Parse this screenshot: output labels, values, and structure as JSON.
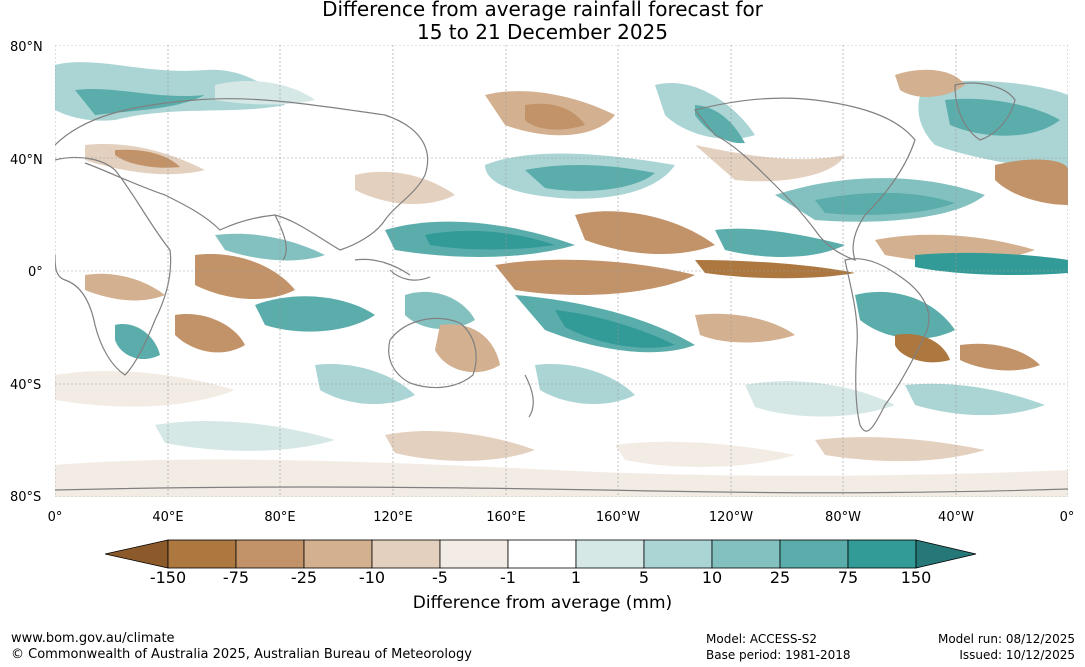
{
  "title_line1": "Difference from average rainfall forecast for",
  "title_line2": "15 to 21 December 2025",
  "lat_labels": [
    "80°N",
    "40°N",
    "0°",
    "40°S",
    "80°S"
  ],
  "lon_labels": [
    "0°",
    "40°E",
    "80°E",
    "120°E",
    "160°E",
    "160°W",
    "120°W",
    "80°W",
    "40°W",
    "0°"
  ],
  "legend": {
    "ticks": [
      "-150",
      "-75",
      "-25",
      "-10",
      "-5",
      "-1",
      "1",
      "5",
      "10",
      "25",
      "75",
      "150"
    ],
    "colors": [
      "#8c5a2a",
      "#ad7740",
      "#c29369",
      "#d3b08f",
      "#e4d0be",
      "#f3ece5",
      "#ffffff",
      "#d5e8e6",
      "#aad5d4",
      "#83c1c0",
      "#5aadab",
      "#329a97",
      "#257877"
    ],
    "title": "Difference from average (mm)"
  },
  "footer": {
    "site": "www.bom.gov.au/climate",
    "copyright": "© Commonwealth of Australia 2025, Australian Bureau of Meteorology",
    "model": "Model: ACCESS-S2",
    "base_period": "Base period: 1981-2018",
    "model_run": "Model run: 08/12/2025",
    "issued": "Issued: 10/12/2025"
  }
}
